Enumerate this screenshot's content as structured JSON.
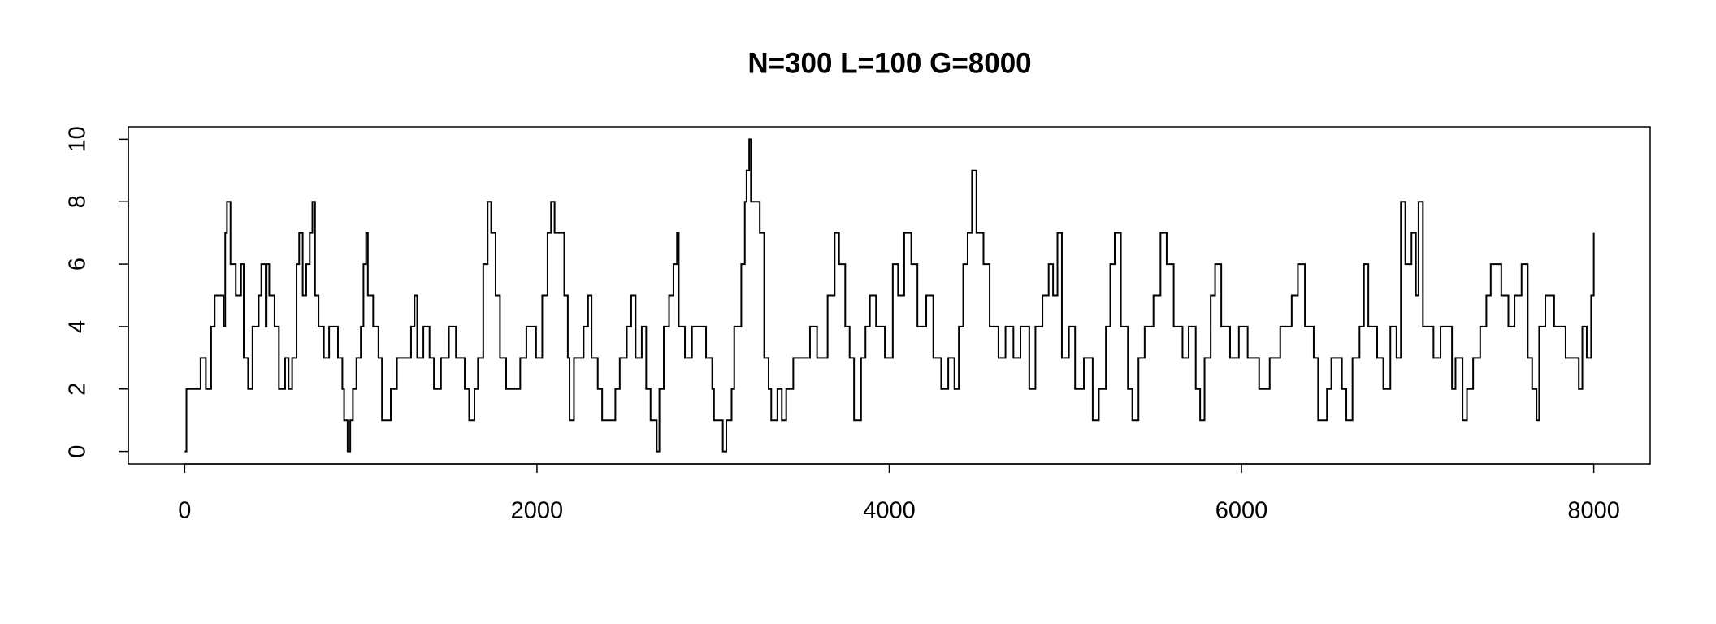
{
  "chart_data": {
    "type": "line",
    "step": "post",
    "title": "N=300 L=100 G=8000",
    "color": "#000000",
    "x": [
      0,
      10,
      90,
      120,
      150,
      170,
      220,
      230,
      240,
      260,
      290,
      320,
      335,
      360,
      385,
      420,
      435,
      460,
      465,
      480,
      510,
      535,
      570,
      590,
      610,
      635,
      650,
      670,
      690,
      710,
      725,
      740,
      760,
      790,
      820,
      870,
      895,
      905,
      925,
      940,
      955,
      975,
      1000,
      1015,
      1030,
      1040,
      1070,
      1100,
      1120,
      1170,
      1205,
      1285,
      1305,
      1320,
      1355,
      1390,
      1415,
      1455,
      1500,
      1540,
      1590,
      1615,
      1645,
      1665,
      1695,
      1720,
      1740,
      1765,
      1790,
      1825,
      1905,
      1940,
      1995,
      2030,
      2060,
      2080,
      2100,
      2155,
      2175,
      2185,
      2210,
      2265,
      2290,
      2310,
      2345,
      2370,
      2445,
      2470,
      2510,
      2535,
      2560,
      2595,
      2620,
      2645,
      2680,
      2695,
      2720,
      2750,
      2775,
      2795,
      2805,
      2840,
      2880,
      2960,
      2995,
      3005,
      3055,
      3075,
      3105,
      3120,
      3160,
      3180,
      3190,
      3205,
      3215,
      3265,
      3290,
      3315,
      3330,
      3365,
      3390,
      3415,
      3455,
      3550,
      3590,
      3650,
      3690,
      3715,
      3750,
      3775,
      3800,
      3840,
      3865,
      3890,
      3925,
      3975,
      4020,
      4050,
      4085,
      4125,
      4160,
      4210,
      4250,
      4295,
      4335,
      4370,
      4395,
      4420,
      4445,
      4470,
      4495,
      4535,
      4570,
      4620,
      4660,
      4705,
      4745,
      4795,
      4830,
      4870,
      4905,
      4930,
      4955,
      4980,
      5020,
      5055,
      5105,
      5155,
      5190,
      5230,
      5255,
      5280,
      5315,
      5355,
      5380,
      5415,
      5450,
      5500,
      5540,
      5575,
      5615,
      5665,
      5700,
      5740,
      5765,
      5790,
      5825,
      5850,
      5885,
      5935,
      5985,
      6035,
      6100,
      6160,
      6220,
      6285,
      6320,
      6360,
      6410,
      6435,
      6485,
      6510,
      6570,
      6595,
      6630,
      6670,
      6695,
      6720,
      6770,
      6805,
      6845,
      6880,
      6905,
      6930,
      6965,
      6990,
      7005,
      7030,
      7090,
      7130,
      7195,
      7215,
      7255,
      7280,
      7315,
      7355,
      7390,
      7415,
      7475,
      7515,
      7550,
      7590,
      7625,
      7650,
      7675,
      7690,
      7725,
      7775,
      7840,
      7915,
      7935,
      7960,
      7985,
      8000
    ],
    "values": [
      0,
      2,
      3,
      2,
      4,
      5,
      4,
      7,
      8,
      6,
      5,
      6,
      3,
      2,
      4,
      5,
      6,
      4,
      6,
      5,
      4,
      2,
      3,
      2,
      3,
      6,
      7,
      5,
      6,
      7,
      8,
      5,
      4,
      3,
      4,
      3,
      2,
      1,
      0,
      1,
      2,
      3,
      4,
      6,
      7,
      5,
      4,
      3,
      1,
      2,
      3,
      4,
      5,
      3,
      4,
      3,
      2,
      3,
      4,
      3,
      2,
      1,
      2,
      3,
      6,
      8,
      7,
      5,
      3,
      2,
      3,
      4,
      3,
      5,
      7,
      8,
      7,
      5,
      3,
      1,
      3,
      4,
      5,
      3,
      2,
      1,
      2,
      3,
      4,
      5,
      3,
      4,
      2,
      1,
      0,
      2,
      4,
      5,
      6,
      7,
      4,
      3,
      4,
      3,
      2,
      1,
      0,
      1,
      2,
      4,
      6,
      8,
      9,
      10,
      8,
      7,
      3,
      2,
      1,
      2,
      1,
      2,
      3,
      4,
      3,
      5,
      7,
      6,
      4,
      3,
      1,
      3,
      4,
      5,
      4,
      3,
      6,
      5,
      7,
      6,
      4,
      5,
      3,
      2,
      3,
      2,
      4,
      6,
      7,
      9,
      7,
      6,
      4,
      3,
      4,
      3,
      4,
      2,
      4,
      5,
      6,
      5,
      7,
      3,
      4,
      2,
      3,
      1,
      2,
      4,
      6,
      7,
      4,
      2,
      1,
      3,
      4,
      5,
      7,
      6,
      4,
      3,
      4,
      2,
      1,
      3,
      5,
      6,
      4,
      3,
      4,
      3,
      2,
      3,
      4,
      5,
      6,
      4,
      3,
      1,
      2,
      3,
      2,
      1,
      3,
      4,
      6,
      4,
      3,
      2,
      4,
      3,
      8,
      6,
      7,
      5,
      8,
      4,
      3,
      4,
      2,
      3,
      1,
      2,
      3,
      4,
      5,
      6,
      5,
      4,
      5,
      6,
      3,
      2,
      1,
      4,
      5,
      4,
      3,
      2,
      4,
      3,
      5,
      7
    ],
    "xlim": [
      -320,
      8320
    ],
    "xticks": [
      0,
      2000,
      4000,
      6000,
      8000
    ],
    "ylim": [
      -0.4,
      10.4
    ],
    "yticks": [
      0,
      2,
      4,
      6,
      8,
      10
    ]
  }
}
